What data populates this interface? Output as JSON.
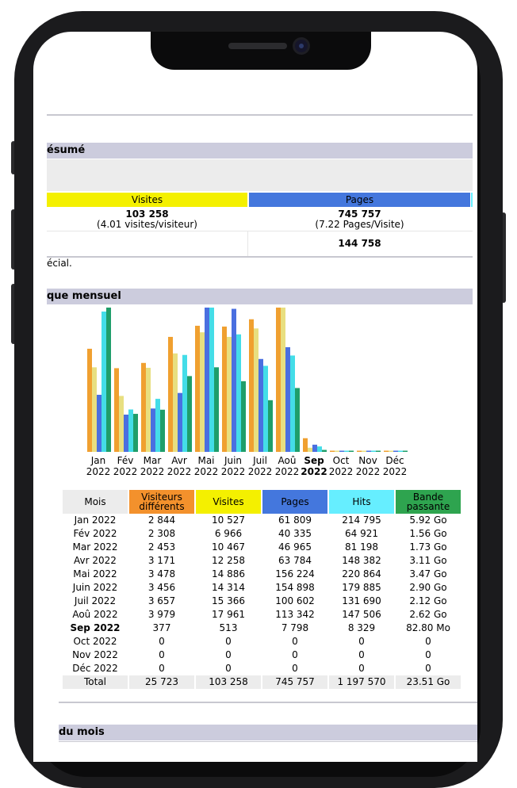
{
  "summary": {
    "section_title": "ésumé",
    "visits_header": "Visites",
    "pages_header": "Pages",
    "visits_value": "103 258",
    "visits_sub": "(4.01 visites/visiteur)",
    "pages_value": "745 757",
    "pages_sub": "(7.22 Pages/Visite)",
    "second_value": "144 758",
    "note": "écial."
  },
  "monthly": {
    "section_title": "que mensuel",
    "headers": {
      "month": "Mois",
      "visitors": "Visiteurs différents",
      "visits": "Visites",
      "pages": "Pages",
      "hits": "Hits",
      "bandwidth": "Bande passante"
    },
    "rows": [
      {
        "month": "Jan 2022",
        "visitors": "2 844",
        "visits": "10 527",
        "pages": "61 809",
        "hits": "214 795",
        "bandwidth": "5.92 Go"
      },
      {
        "month": "Fév 2022",
        "visitors": "2 308",
        "visits": "6 966",
        "pages": "40 335",
        "hits": "64 921",
        "bandwidth": "1.56 Go"
      },
      {
        "month": "Mar 2022",
        "visitors": "2 453",
        "visits": "10 467",
        "pages": "46 965",
        "hits": "81 198",
        "bandwidth": "1.73 Go"
      },
      {
        "month": "Avr 2022",
        "visitors": "3 171",
        "visits": "12 258",
        "pages": "63 784",
        "hits": "148 382",
        "bandwidth": "3.11 Go"
      },
      {
        "month": "Mai 2022",
        "visitors": "3 478",
        "visits": "14 886",
        "pages": "156 224",
        "hits": "220 864",
        "bandwidth": "3.47 Go"
      },
      {
        "month": "Juin 2022",
        "visitors": "3 456",
        "visits": "14 314",
        "pages": "154 898",
        "hits": "179 885",
        "bandwidth": "2.90 Go"
      },
      {
        "month": "Juil 2022",
        "visitors": "3 657",
        "visits": "15 366",
        "pages": "100 602",
        "hits": "131 690",
        "bandwidth": "2.12 Go"
      },
      {
        "month": "Aoû 2022",
        "visitors": "3 979",
        "visits": "17 961",
        "pages": "113 342",
        "hits": "147 506",
        "bandwidth": "2.62 Go"
      },
      {
        "month": "Sep 2022",
        "visitors": "377",
        "visits": "513",
        "pages": "7 798",
        "hits": "8 329",
        "bandwidth": "82.80 Mo",
        "current": true
      },
      {
        "month": "Oct 2022",
        "visitors": "0",
        "visits": "0",
        "pages": "0",
        "hits": "0",
        "bandwidth": "0"
      },
      {
        "month": "Nov 2022",
        "visitors": "0",
        "visits": "0",
        "pages": "0",
        "hits": "0",
        "bandwidth": "0"
      },
      {
        "month": "Déc 2022",
        "visitors": "0",
        "visits": "0",
        "pages": "0",
        "hits": "0",
        "bandwidth": "0"
      }
    ],
    "total": {
      "month": "Total",
      "visitors": "25 723",
      "visits": "103 258",
      "pages": "745 757",
      "hits": "1 197 570",
      "bandwidth": "23.51 Go"
    }
  },
  "chart_data": {
    "type": "bar",
    "categories": [
      "Jan 2022",
      "Fév 2022",
      "Mar 2022",
      "Avr 2022",
      "Mai 2022",
      "Juin 2022",
      "Juil 2022",
      "Aoû 2022",
      "Sep 2022",
      "Oct 2022",
      "Nov 2022",
      "Déc 2022"
    ],
    "tick_month": [
      "Jan",
      "Fév",
      "Mar",
      "Avr",
      "Mai",
      "Juin",
      "Juil",
      "Aoû",
      "Sep",
      "Oct",
      "Nov",
      "Déc"
    ],
    "tick_year": [
      "2022",
      "2022",
      "2022",
      "2022",
      "2022",
      "2022",
      "2022",
      "2022",
      "2022",
      "2022",
      "2022",
      "2022"
    ],
    "current_index": 8,
    "series": [
      {
        "name": "Visiteurs différents",
        "color": "#f0a030",
        "values": [
          2844,
          2308,
          2453,
          3171,
          3478,
          3456,
          3657,
          3979,
          377,
          0,
          0,
          0
        ]
      },
      {
        "name": "Visites",
        "color": "#e8df80",
        "values": [
          10527,
          6966,
          10467,
          12258,
          14886,
          14314,
          15366,
          17961,
          513,
          0,
          0,
          0
        ]
      },
      {
        "name": "Pages",
        "color": "#4a6fe0",
        "values": [
          61809,
          40335,
          46965,
          63784,
          156224,
          154898,
          100602,
          113342,
          7798,
          0,
          0,
          0
        ]
      },
      {
        "name": "Hits",
        "color": "#44dde8",
        "values": [
          214795,
          64921,
          81198,
          148382,
          220864,
          179885,
          131690,
          147506,
          8329,
          0,
          0,
          0
        ]
      },
      {
        "name": "Bande passante",
        "color": "#1f9e6a",
        "values": [
          5.92,
          1.56,
          1.73,
          3.11,
          3.47,
          2.9,
          2.12,
          2.62,
          0.0808,
          0,
          0,
          0
        ]
      }
    ],
    "legend": "none",
    "grid": false
  },
  "colors": {
    "section_bg": "#ccccdd",
    "visits": "#f4f000",
    "pages": "#4477dd",
    "visitors": "#f3912c",
    "hits": "#66eeff",
    "bandwidth": "#2ea44f",
    "month_head": "#ececec"
  },
  "month_section": {
    "section_title": "du mois"
  }
}
